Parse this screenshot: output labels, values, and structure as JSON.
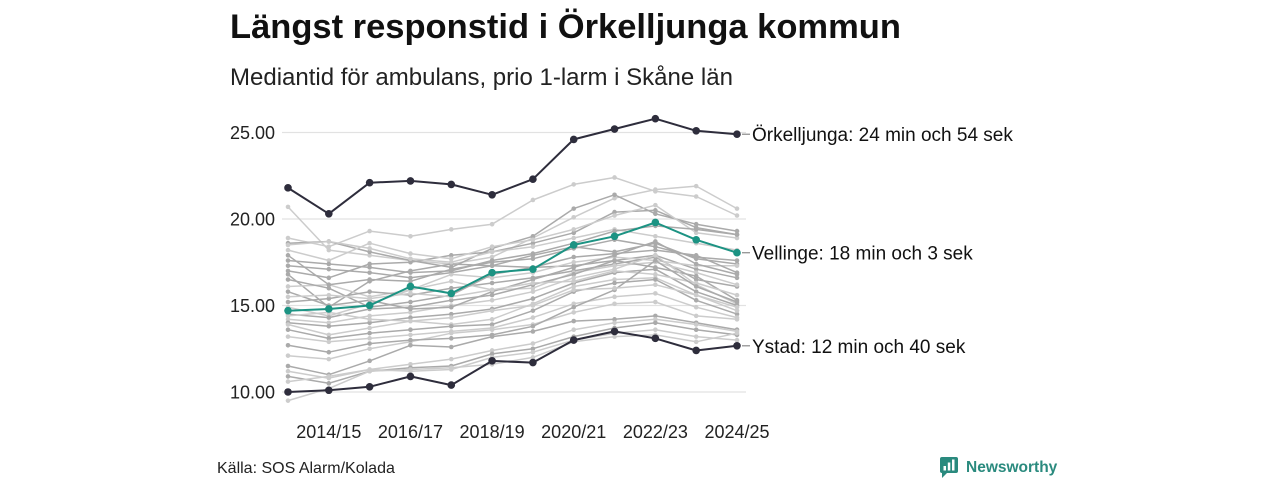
{
  "chart_data": {
    "type": "line",
    "title": "Längst responstid i Örkelljunga kommun",
    "subtitle": "Mediantid för ambulans, prio 1-larm i Skåne län",
    "xlabel": "",
    "ylabel": "",
    "ylim": [
      9.3,
      26.0
    ],
    "grid": "horizontal",
    "y_ticks": [
      {
        "value": 10,
        "label": "10.00"
      },
      {
        "value": 15,
        "label": "15.00"
      },
      {
        "value": 20,
        "label": "20.00"
      },
      {
        "value": 25,
        "label": "25.00"
      }
    ],
    "x_ticks": [
      {
        "index": 1,
        "label": "2014/15"
      },
      {
        "index": 3,
        "label": "2016/17"
      },
      {
        "index": 5,
        "label": "2018/19"
      },
      {
        "index": 7,
        "label": "2020/21"
      },
      {
        "index": 9,
        "label": "2022/23"
      },
      {
        "index": 11,
        "label": "2024/25"
      }
    ],
    "series_background": [
      {
        "color": "#cccccc",
        "values": [
          20.7,
          18.2,
          17.9,
          17.6,
          17.4,
          17.8,
          18.9,
          20.1,
          21.2,
          21.7,
          21.9,
          20.6
        ]
      },
      {
        "color": "#cccccc",
        "values": [
          18.9,
          18.4,
          19.3,
          19.0,
          19.4,
          19.7,
          21.1,
          22.0,
          22.4,
          21.6,
          21.3,
          20.2
        ]
      },
      {
        "color": "#aaaaaa",
        "values": [
          18.6,
          18.7,
          18.1,
          17.6,
          17.2,
          18.3,
          19.0,
          20.6,
          21.4,
          20.3,
          19.7,
          19.3
        ]
      },
      {
        "color": "#aaaaaa",
        "values": [
          17.0,
          16.6,
          17.4,
          17.5,
          17.9,
          18.1,
          18.6,
          19.2,
          20.4,
          20.5,
          19.5,
          19.1
        ]
      },
      {
        "color": "#cccccc",
        "values": [
          18.2,
          17.6,
          18.6,
          18.0,
          17.7,
          18.4,
          18.8,
          19.4,
          20.2,
          20.8,
          19.2,
          18.9
        ]
      },
      {
        "color": "#aaaaaa",
        "values": [
          17.3,
          17.1,
          16.9,
          16.6,
          16.9,
          17.3,
          17.9,
          18.4,
          18.1,
          18.6,
          17.7,
          17.4
        ]
      },
      {
        "color": "#aaaaaa",
        "values": [
          16.8,
          14.9,
          16.4,
          17.0,
          17.4,
          17.3,
          17.2,
          17.3,
          17.6,
          17.9,
          17.1,
          16.6
        ]
      },
      {
        "color": "#cccccc",
        "values": [
          16.1,
          16.2,
          15.5,
          15.9,
          16.8,
          16.6,
          16.9,
          17.5,
          17.8,
          17.6,
          17.3,
          17.3
        ]
      },
      {
        "color": "#aaaaaa",
        "values": [
          15.2,
          15.4,
          15.8,
          15.6,
          16.0,
          16.3,
          16.6,
          17.0,
          17.4,
          17.8,
          16.5,
          16.1
        ]
      },
      {
        "color": "#cccccc",
        "values": [
          14.9,
          14.4,
          15.1,
          15.9,
          16.4,
          15.9,
          16.0,
          16.9,
          17.3,
          17.5,
          16.9,
          16.2
        ]
      },
      {
        "color": "#aaaaaa",
        "values": [
          14.5,
          14.3,
          14.8,
          14.9,
          15.3,
          15.6,
          16.2,
          16.8,
          17.6,
          17.2,
          16.7,
          15.3
        ]
      },
      {
        "color": "#cccccc",
        "values": [
          14.2,
          14.0,
          14.4,
          14.6,
          15.0,
          15.3,
          15.8,
          16.6,
          17.1,
          17.9,
          16.2,
          15.1
        ]
      },
      {
        "color": "#aaaaaa",
        "values": [
          14.0,
          13.8,
          14.0,
          14.3,
          14.5,
          14.8,
          15.4,
          16.3,
          16.9,
          17.1,
          15.8,
          15.0
        ]
      },
      {
        "color": "#cccccc",
        "values": [
          13.9,
          13.3,
          13.7,
          14.1,
          13.9,
          14.2,
          15.1,
          16.1,
          16.5,
          16.6,
          15.6,
          14.9
        ]
      },
      {
        "color": "#aaaaaa",
        "values": [
          13.6,
          13.1,
          13.4,
          13.6,
          13.8,
          13.9,
          14.7,
          15.8,
          16.3,
          16.5,
          15.3,
          14.5
        ]
      },
      {
        "color": "#cccccc",
        "values": [
          13.2,
          12.9,
          13.1,
          13.3,
          13.5,
          13.7,
          14.3,
          15.1,
          15.5,
          15.7,
          14.9,
          14.3
        ]
      },
      {
        "color": "#cccccc",
        "values": [
          12.1,
          11.9,
          12.5,
          12.9,
          13.4,
          13.6,
          13.9,
          14.6,
          15.1,
          15.2,
          14.4,
          14.2
        ]
      },
      {
        "color": "#aaaaaa",
        "values": [
          11.5,
          11.0,
          11.8,
          12.7,
          12.6,
          13.2,
          13.5,
          14.1,
          14.2,
          14.4,
          14.0,
          13.6
        ]
      },
      {
        "color": "#cccccc",
        "values": [
          11.2,
          10.8,
          11.3,
          11.6,
          11.9,
          12.4,
          12.8,
          13.6,
          14.0,
          14.2,
          13.9,
          13.5
        ]
      },
      {
        "color": "#aaaaaa",
        "values": [
          10.9,
          10.5,
          11.2,
          11.4,
          11.5,
          12.2,
          12.5,
          13.2,
          13.7,
          14.0,
          13.6,
          13.3
        ]
      },
      {
        "color": "#cccccc",
        "values": [
          10.6,
          10.9,
          11.3,
          11.2,
          11.3,
          12.0,
          12.3,
          13.0,
          13.4,
          13.6,
          13.2,
          13.0
        ]
      },
      {
        "color": "#cccccc",
        "values": [
          9.5,
          10.2,
          11.2,
          11.3,
          11.4,
          11.6,
          12.0,
          12.9,
          13.2,
          13.3,
          12.9,
          13.4
        ]
      },
      {
        "color": "#aaaaaa",
        "values": [
          15.8,
          15.0,
          15.3,
          14.8,
          14.9,
          15.8,
          16.5,
          17.2,
          17.9,
          18.7,
          17.4,
          16.8
        ]
      },
      {
        "color": "#cccccc",
        "values": [
          18.5,
          18.7,
          18.3,
          17.7,
          17.5,
          18.1,
          18.4,
          18.9,
          19.4,
          19.0,
          18.6,
          18.2
        ]
      },
      {
        "color": "#aaaaaa",
        "values": [
          17.9,
          16.2,
          16.5,
          16.4,
          17.1,
          17.5,
          17.7,
          18.3,
          18.8,
          18.4,
          17.8,
          17.6
        ]
      },
      {
        "color": "#aaaaaa",
        "values": [
          16.5,
          16.0,
          14.9,
          15.2,
          15.6,
          16.8,
          17.2,
          17.8,
          18.0,
          18.2,
          17.9,
          16.9
        ]
      },
      {
        "color": "#cccccc",
        "values": [
          15.5,
          15.6,
          15.4,
          15.7,
          15.5,
          15.9,
          16.3,
          16.4,
          17.0,
          16.8,
          16.3,
          15.6
        ]
      },
      {
        "color": "#aaaaaa",
        "values": [
          17.6,
          17.4,
          17.2,
          16.9,
          17.0,
          17.6,
          18.0,
          18.6,
          19.3,
          19.6,
          19.4,
          19.1
        ]
      },
      {
        "color": "#aaaaaa",
        "values": [
          12.7,
          12.3,
          12.8,
          13.0,
          13.1,
          13.3,
          13.8,
          14.9,
          15.9,
          17.6,
          16.1,
          15.2
        ]
      },
      {
        "color": "#cccccc",
        "values": [
          14.4,
          14.6,
          14.2,
          14.1,
          14.3,
          14.7,
          15.0,
          15.9,
          16.0,
          16.2,
          15.6,
          14.7
        ]
      }
    ],
    "series_highlight": [
      {
        "label": "Örkelljunga: 24 min och 54 sek",
        "color": "#2e2d3c",
        "values": [
          21.8,
          20.3,
          22.1,
          22.2,
          22.0,
          21.4,
          22.3,
          24.6,
          25.2,
          25.8,
          25.1,
          24.9
        ]
      },
      {
        "label": "Vellinge: 18 min och 3 sek",
        "color": "#1c9383",
        "values": [
          14.7,
          14.8,
          15.0,
          16.1,
          15.7,
          16.9,
          17.1,
          18.5,
          19.0,
          19.8,
          18.8,
          18.05
        ]
      },
      {
        "label": "Ystad: 12 min och 40 sek",
        "color": "#2e2d3c",
        "values": [
          10.0,
          10.1,
          10.3,
          10.9,
          10.4,
          11.8,
          11.7,
          13.0,
          13.5,
          13.1,
          12.4,
          12.67
        ]
      }
    ],
    "source": "Källa: SOS Alarm/Kolada"
  },
  "brand": {
    "name": "Newsworthy",
    "color": "#2a8a7e",
    "icon": "bar-chart-icon"
  }
}
